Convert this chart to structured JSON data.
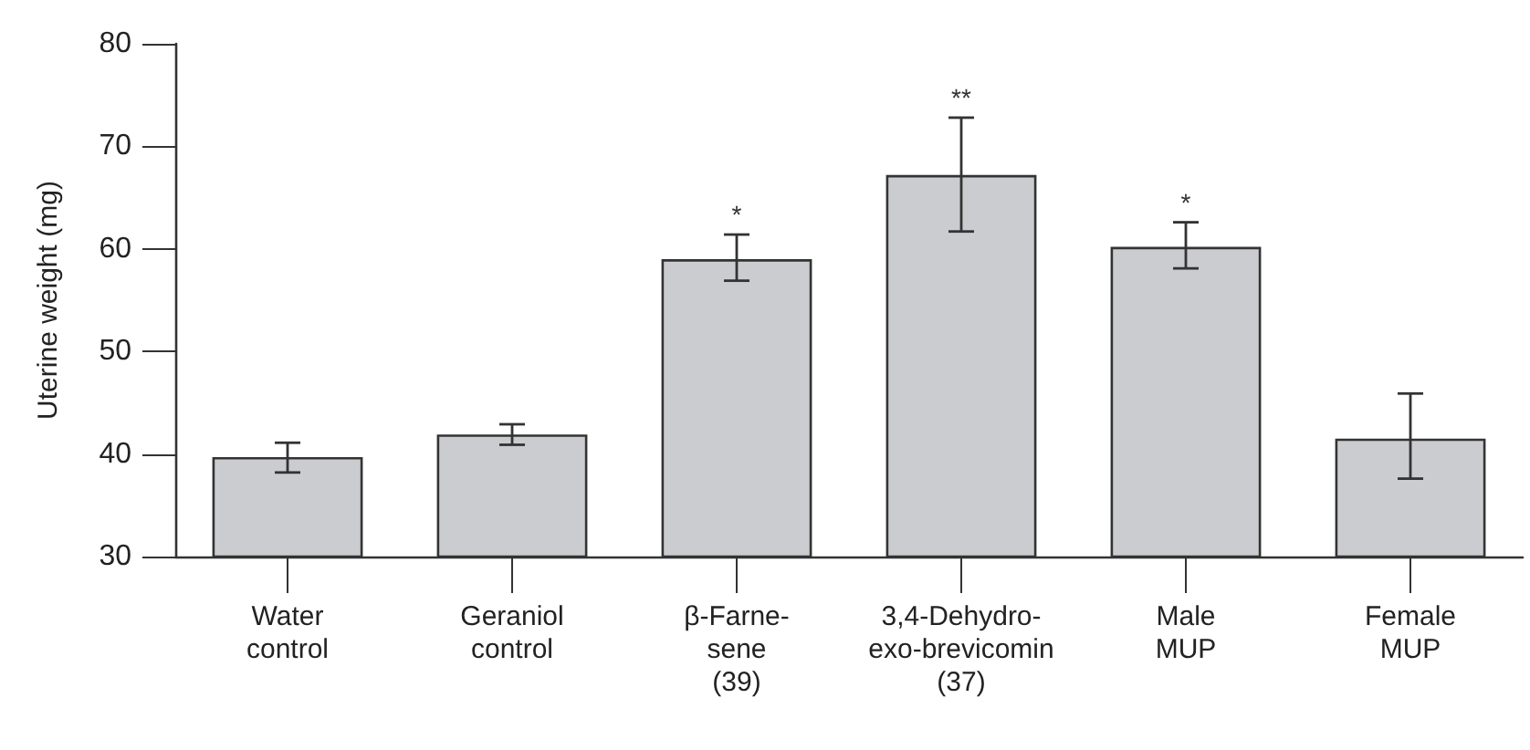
{
  "chart_data": {
    "type": "bar",
    "ylabel": "Uterine weight (mg)",
    "categories": [
      "Water\ncontrol",
      "Geraniol\ncontrol",
      "β-Farne-\nsene\n(39)",
      "3,4-Dehydro-\nexo-brevicomin\n(37)",
      "Male\nMUP",
      "Female\nMUP"
    ],
    "values": [
      39.7,
      41.9,
      59.0,
      67.2,
      60.2,
      41.5
    ],
    "errors": [
      [
        38.2,
        41.1
      ],
      [
        40.9,
        42.9
      ],
      [
        56.9,
        61.4
      ],
      [
        61.7,
        72.8
      ],
      [
        58.1,
        62.6
      ],
      [
        37.6,
        45.9
      ]
    ],
    "color": "#cbcccf",
    "ylim": [
      30,
      80
    ],
    "yticks": [
      30,
      40,
      50,
      60,
      70,
      80
    ],
    "grid": false,
    "value_labels": [
      null,
      null,
      "*",
      "**",
      "*",
      null
    ]
  }
}
